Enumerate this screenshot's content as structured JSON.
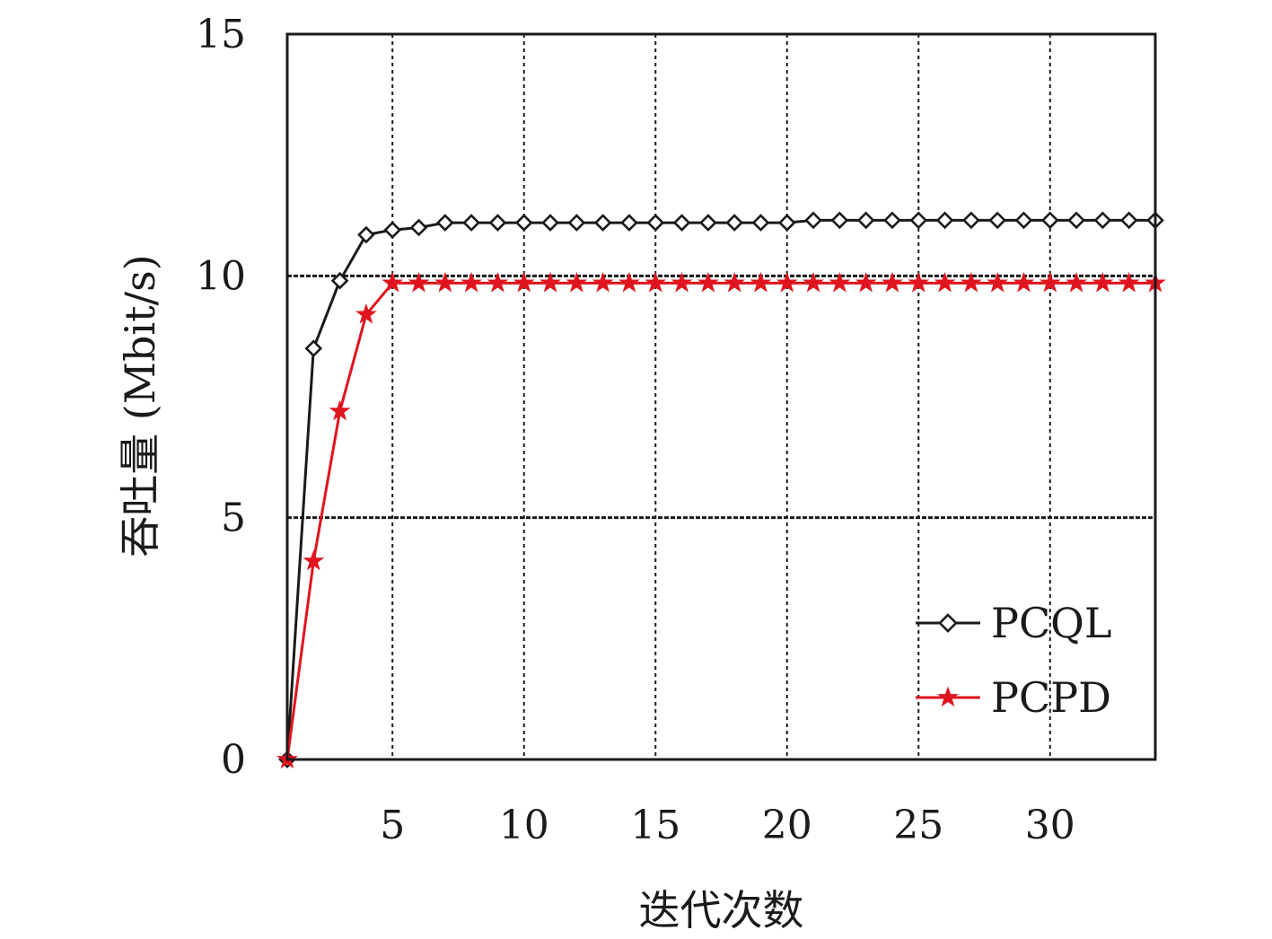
{
  "chart_data": {
    "type": "line",
    "title": "",
    "xlabel": "迭代次数",
    "ylabel": "吞吐量 (Mbit/s)",
    "xlim": [
      1,
      34
    ],
    "ylim": [
      0,
      15
    ],
    "x_ticks": [
      5,
      10,
      15,
      20,
      25,
      30
    ],
    "y_ticks": [
      0,
      5,
      10,
      15
    ],
    "grid": true,
    "legend_position": "bottom-right",
    "x": [
      1,
      2,
      3,
      4,
      5,
      6,
      7,
      8,
      9,
      10,
      11,
      12,
      13,
      14,
      15,
      16,
      17,
      18,
      19,
      20,
      21,
      22,
      23,
      24,
      25,
      26,
      27,
      28,
      29,
      30,
      31,
      32,
      33,
      34
    ],
    "series": [
      {
        "name": "PCQL",
        "color": "#1a1a1a",
        "marker": "diamond",
        "values": [
          0,
          8.5,
          9.9,
          10.85,
          10.95,
          11.0,
          11.1,
          11.1,
          11.1,
          11.1,
          11.1,
          11.1,
          11.1,
          11.1,
          11.1,
          11.1,
          11.1,
          11.1,
          11.1,
          11.1,
          11.15,
          11.15,
          11.15,
          11.15,
          11.15,
          11.15,
          11.15,
          11.15,
          11.15,
          11.15,
          11.15,
          11.15,
          11.15,
          11.15
        ]
      },
      {
        "name": "PCPD",
        "color": "#e0141e",
        "marker": "star",
        "values": [
          0,
          4.1,
          7.2,
          9.2,
          9.85,
          9.85,
          9.85,
          9.85,
          9.85,
          9.85,
          9.85,
          9.85,
          9.85,
          9.85,
          9.85,
          9.85,
          9.85,
          9.85,
          9.85,
          9.85,
          9.85,
          9.85,
          9.85,
          9.85,
          9.85,
          9.85,
          9.85,
          9.85,
          9.85,
          9.85,
          9.85,
          9.85,
          9.85,
          9.85
        ]
      }
    ]
  }
}
